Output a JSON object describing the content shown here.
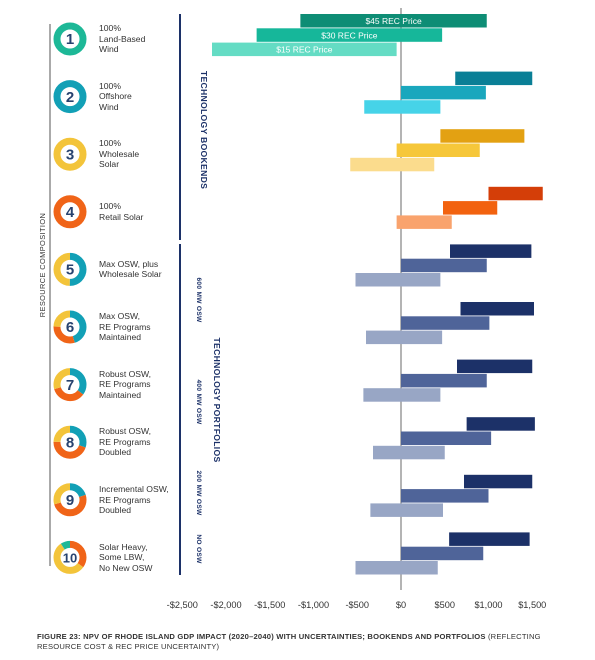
{
  "chart_data": {
    "type": "bar",
    "orientation": "horizontal",
    "x_ticks": [
      "-$2,500",
      "-$2,000",
      "-$1,500",
      "-$1,000",
      "-$500",
      "$0",
      "$500",
      "$1,000",
      "$1,500"
    ],
    "xlim": [
      -2500,
      1500
    ],
    "series_legend": [
      "$45 REC Price",
      "$30 REC Price",
      "$15 REC Price"
    ],
    "y_axis_title": "RESOURCE COMPOSITION",
    "group_labels": {
      "bookends": "TECHNOLOGY BOOKENDS",
      "portfolios": "TECHNOLOGY PORTFOLIOS",
      "osw_600": "600 MW OSW",
      "osw_400": "400 MW OSW",
      "osw_200": "200 MW OSW",
      "no_osw": "NO OSW"
    },
    "scenarios": [
      {
        "number": "1",
        "label": "100% Land-Based Wind",
        "label_lines": [
          "100%",
          "Land-Based",
          "Wind"
        ],
        "ranges": [
          [
            -1150,
            980
          ],
          [
            -1650,
            470
          ],
          [
            -2160,
            -50
          ]
        ]
      },
      {
        "number": "2",
        "label": "100% Offshore Wind",
        "label_lines": [
          "100%",
          "Offshore",
          "Wind"
        ],
        "ranges": [
          [
            620,
            1500
          ],
          [
            0,
            970
          ],
          [
            -420,
            450
          ]
        ]
      },
      {
        "number": "3",
        "label": "100% Wholesale Solar",
        "label_lines": [
          "100%",
          "Wholesale",
          "Solar"
        ],
        "ranges": [
          [
            450,
            1410
          ],
          [
            -50,
            900
          ],
          [
            -580,
            380
          ]
        ]
      },
      {
        "number": "4",
        "label": "100% Retail Solar",
        "label_lines": [
          "100%",
          "Retail Solar"
        ],
        "ranges": [
          [
            1000,
            1620
          ],
          [
            480,
            1100
          ],
          [
            -50,
            580
          ]
        ]
      },
      {
        "number": "5",
        "label": "Max OSW, plus Wholesale Solar",
        "label_lines": [
          "Max OSW, plus",
          "Wholesale Solar"
        ],
        "ranges": [
          [
            560,
            1490
          ],
          [
            0,
            980
          ],
          [
            -520,
            450
          ]
        ]
      },
      {
        "number": "6",
        "label": "Max OSW, RE Programs Maintained",
        "label_lines": [
          "Max OSW,",
          "RE Programs",
          "Maintained"
        ],
        "ranges": [
          [
            680,
            1520
          ],
          [
            0,
            1010
          ],
          [
            -400,
            470
          ]
        ]
      },
      {
        "number": "7",
        "label": "Robust OSW, RE Programs Maintained",
        "label_lines": [
          "Robust OSW,",
          "RE Programs",
          "Maintained"
        ],
        "ranges": [
          [
            640,
            1500
          ],
          [
            0,
            980
          ],
          [
            -430,
            450
          ]
        ]
      },
      {
        "number": "8",
        "label": "Robust OSW, RE Programs Doubled",
        "label_lines": [
          "Robust OSW,",
          "RE Programs",
          "Doubled"
        ],
        "ranges": [
          [
            750,
            1530
          ],
          [
            0,
            1030
          ],
          [
            -320,
            500
          ]
        ]
      },
      {
        "number": "9",
        "label": "Incremental OSW, RE Programs Doubled",
        "label_lines": [
          "Incremental OSW,",
          "RE Programs",
          "Doubled"
        ],
        "ranges": [
          [
            720,
            1500
          ],
          [
            0,
            1000
          ],
          [
            -350,
            480
          ]
        ]
      },
      {
        "number": "10",
        "label": "Solar Heavy, Some LBW, No New OSW",
        "label_lines": [
          "Solar Heavy,",
          "Some LBW,",
          "No New OSW"
        ],
        "ranges": [
          [
            550,
            1470
          ],
          [
            0,
            940
          ],
          [
            -520,
            420
          ]
        ]
      }
    ],
    "colors": {
      "s1": [
        "#0e8d75",
        "#16b79a",
        "#64dcc4"
      ],
      "s2": [
        "#0a7f96",
        "#1aa7bd",
        "#46d3e8"
      ],
      "s3": [
        "#e3a112",
        "#f6c73a",
        "#fbdc8d"
      ],
      "s4": [
        "#d43e08",
        "#f2620f",
        "#f9a36d"
      ],
      "portfolio": [
        "#1c3168",
        "#4f6499",
        "#98a6c5"
      ],
      "ring": {
        "s1": [
          [
            "#1db897",
            1.0
          ]
        ],
        "s2": [
          [
            "#12a0b6",
            1.0
          ]
        ],
        "s3": [
          [
            "#f3c43a",
            1.0
          ]
        ],
        "s4": [
          [
            "#f06418",
            1.0
          ]
        ],
        "s5": [
          [
            "#12a0b6",
            0.5
          ],
          [
            "#f3c43a",
            0.5
          ]
        ],
        "s6": [
          [
            "#12a0b6",
            0.45
          ],
          [
            "#f06418",
            0.3
          ],
          [
            "#f3c43a",
            0.25
          ]
        ],
        "s7": [
          [
            "#12a0b6",
            0.35
          ],
          [
            "#f06418",
            0.35
          ],
          [
            "#f3c43a",
            0.3
          ]
        ],
        "s8": [
          [
            "#12a0b6",
            0.3
          ],
          [
            "#f06418",
            0.45
          ],
          [
            "#f3c43a",
            0.25
          ]
        ],
        "s9": [
          [
            "#12a0b6",
            0.2
          ],
          [
            "#f06418",
            0.5
          ],
          [
            "#f3c43a",
            0.3
          ]
        ],
        "s10": [
          [
            "#f06418",
            0.35
          ],
          [
            "#f3c43a",
            0.55
          ],
          [
            "#1db897",
            0.1
          ]
        ]
      },
      "number_badge": "#27426f",
      "rule": "#1c3168"
    }
  },
  "caption": {
    "bold": "FIGURE 23: NPV OF RHODE ISLAND GDP IMPACT (2020–2040) WITH UNCERTAINTIES; BOOKENDS AND PORTFOLIOS",
    "rest": " (REFLECTING RESOURCE COST & REC PRICE UNCERTAINTY)"
  }
}
